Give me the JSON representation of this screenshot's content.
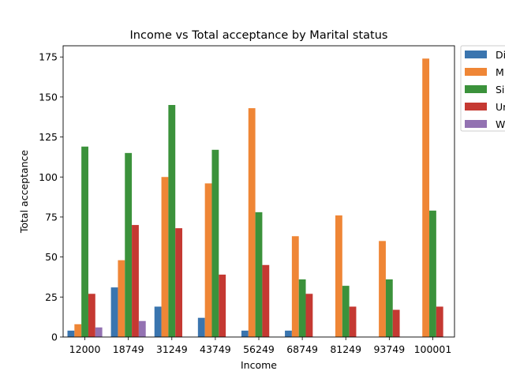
{
  "chart_data": {
    "type": "bar",
    "title": "Income vs Total acceptance by Marital status",
    "xlabel": "Income",
    "ylabel": "Total acceptance",
    "ylim": [
      0,
      182
    ],
    "yticks": [
      0,
      25,
      50,
      75,
      100,
      125,
      150,
      175
    ],
    "categories": [
      "12000",
      "18749",
      "31249",
      "43749",
      "56249",
      "68749",
      "81249",
      "93749",
      "100001"
    ],
    "legend": {
      "placement": "outside-right-top"
    },
    "grid": false,
    "series": [
      {
        "name": "Di",
        "color": "#3a75af",
        "values": [
          4,
          31,
          19,
          12,
          4,
          4,
          null,
          null,
          null
        ]
      },
      {
        "name": "M",
        "color": "#ef8636",
        "values": [
          8,
          48,
          100,
          96,
          143,
          63,
          76,
          60,
          174
        ]
      },
      {
        "name": "Si",
        "color": "#3b923b",
        "values": [
          119,
          115,
          145,
          117,
          78,
          36,
          32,
          36,
          79
        ]
      },
      {
        "name": "Ur",
        "color": "#c53932",
        "values": [
          27,
          70,
          68,
          39,
          45,
          27,
          19,
          17,
          19
        ]
      },
      {
        "name": "W",
        "color": "#9372b2",
        "values": [
          6,
          10,
          null,
          null,
          null,
          null,
          null,
          null,
          null
        ]
      }
    ]
  }
}
